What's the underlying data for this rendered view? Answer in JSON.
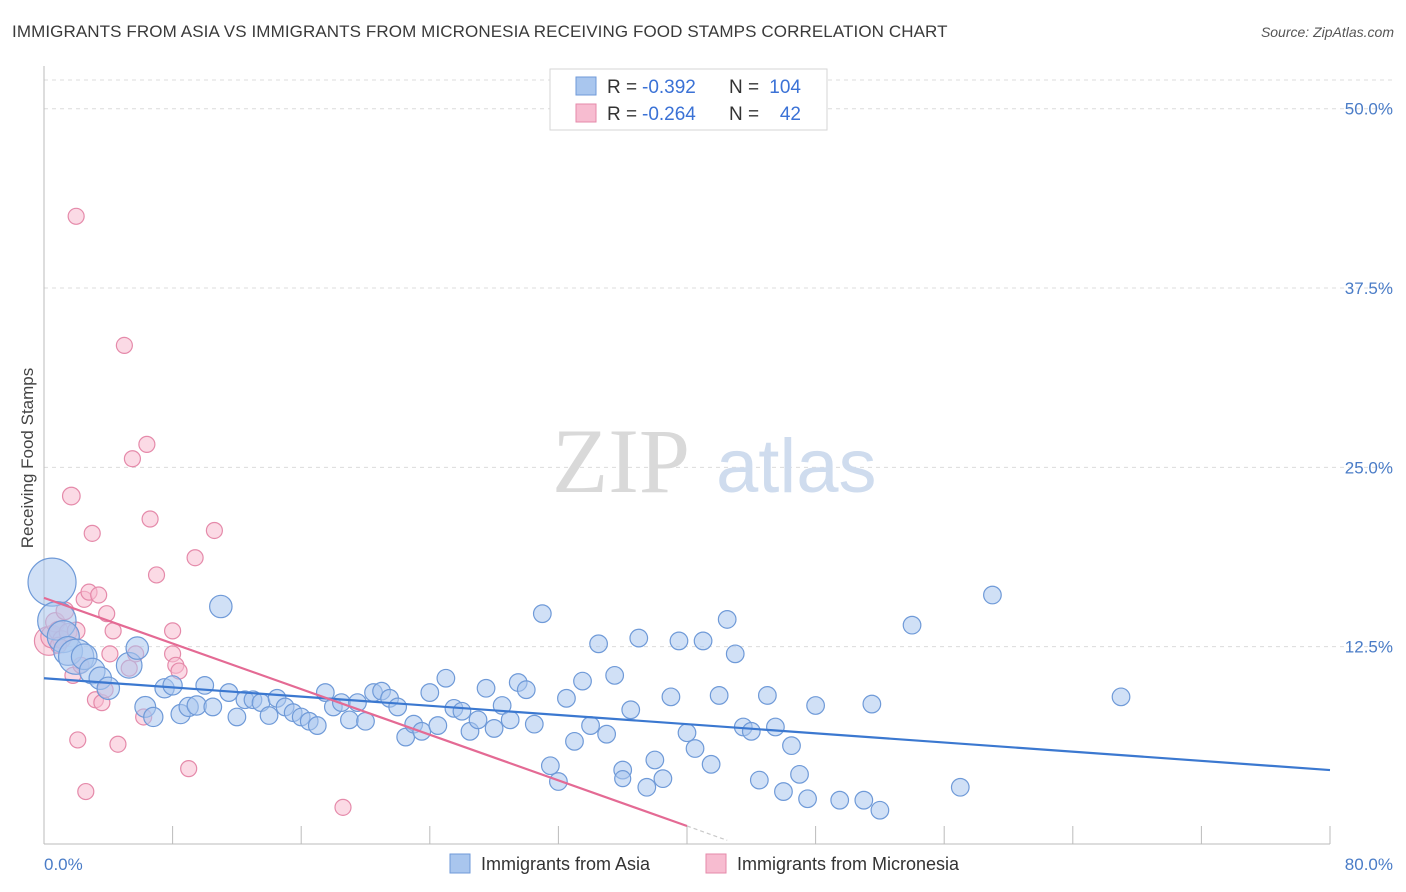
{
  "title": "IMMIGRANTS FROM ASIA VS IMMIGRANTS FROM MICRONESIA RECEIVING FOOD STAMPS CORRELATION CHART",
  "source": "Source: ZipAtlas.com",
  "watermark": {
    "left": "ZIP",
    "right": "atlas"
  },
  "colors": {
    "asia_fill": "#a9c6ee",
    "asia_stroke": "#6f9ad8",
    "asia_line": "#3b78d0",
    "micronesia_fill": "#f7bcd0",
    "micronesia_stroke": "#e58aaa",
    "micronesia_line": "#e46a94",
    "tick_label": "#4a7cc7",
    "grid": "#dcdcdc"
  },
  "legend": {
    "rows": [
      {
        "r_label": "R =",
        "r_value": "-0.392",
        "n_label": "N =",
        "n_value": "104"
      },
      {
        "r_label": "R =",
        "r_value": "-0.264",
        "n_label": "N =",
        "n_value": "42"
      }
    ]
  },
  "bottom_legend": {
    "asia": "Immigrants from Asia",
    "micronesia": "Immigrants from Micronesia"
  },
  "chart_data": {
    "type": "scatter",
    "title": "IMMIGRANTS FROM ASIA VS IMMIGRANTS FROM MICRONESIA RECEIVING FOOD STAMPS CORRELATION CHART",
    "xlabel": "",
    "ylabel": "Receiving Food Stamps",
    "xlim": [
      0,
      80
    ],
    "ylim": [
      0,
      52
    ],
    "x_tick_labels": [
      "0.0%",
      "80.0%"
    ],
    "y_ticks": [
      12.5,
      25.0,
      37.5,
      50.0
    ],
    "y_tick_labels": [
      "12.5%",
      "25.0%",
      "37.5%",
      "50.0%"
    ],
    "grid": true,
    "legend_position": "top-center",
    "series": [
      {
        "name": "Immigrants from Asia",
        "r": -0.392,
        "n": 104,
        "trend": {
          "x": [
            0,
            80
          ],
          "y": [
            10.3,
            3.9
          ]
        },
        "points": [
          [
            0.5,
            17.0,
            3.0
          ],
          [
            0.8,
            14.3,
            2.4
          ],
          [
            1.2,
            13.2,
            2.0
          ],
          [
            1.5,
            12.2,
            1.8
          ],
          [
            2.0,
            11.8,
            2.2
          ],
          [
            2.5,
            11.8,
            1.6
          ],
          [
            3.0,
            10.8,
            1.6
          ],
          [
            3.5,
            10.3,
            1.4
          ],
          [
            4.0,
            9.6,
            1.4
          ],
          [
            5.3,
            11.2,
            1.6
          ],
          [
            5.8,
            12.4,
            1.4
          ],
          [
            6.3,
            8.3,
            1.3
          ],
          [
            6.8,
            7.6,
            1.2
          ],
          [
            7.5,
            9.6,
            1.2
          ],
          [
            8.0,
            9.8,
            1.2
          ],
          [
            8.5,
            7.8,
            1.2
          ],
          [
            9.0,
            8.3,
            1.2
          ],
          [
            9.5,
            8.4,
            1.2
          ],
          [
            10.0,
            9.8,
            1.1
          ],
          [
            10.5,
            8.3,
            1.1
          ],
          [
            11.0,
            15.3,
            1.4
          ],
          [
            11.5,
            9.3,
            1.1
          ],
          [
            12.0,
            7.6,
            1.1
          ],
          [
            12.5,
            8.8,
            1.1
          ],
          [
            13.0,
            8.8,
            1.1
          ],
          [
            13.5,
            8.6,
            1.1
          ],
          [
            14.0,
            7.7,
            1.1
          ],
          [
            14.5,
            8.9,
            1.1
          ],
          [
            15.0,
            8.3,
            1.1
          ],
          [
            15.5,
            7.9,
            1.1
          ],
          [
            16.0,
            7.6,
            1.1
          ],
          [
            16.5,
            7.3,
            1.1
          ],
          [
            17.0,
            7.0,
            1.1
          ],
          [
            17.5,
            9.3,
            1.1
          ],
          [
            18.0,
            8.3,
            1.1
          ],
          [
            18.5,
            8.6,
            1.1
          ],
          [
            19.0,
            7.4,
            1.1
          ],
          [
            19.5,
            8.6,
            1.1
          ],
          [
            20.0,
            7.3,
            1.1
          ],
          [
            20.5,
            9.3,
            1.1
          ],
          [
            21.0,
            9.4,
            1.1
          ],
          [
            21.5,
            8.9,
            1.1
          ],
          [
            22.0,
            8.3,
            1.1
          ],
          [
            22.5,
            6.2,
            1.1
          ],
          [
            23.0,
            7.1,
            1.1
          ],
          [
            23.5,
            6.6,
            1.1
          ],
          [
            24.0,
            9.3,
            1.1
          ],
          [
            24.5,
            7.0,
            1.1
          ],
          [
            25.0,
            10.3,
            1.1
          ],
          [
            25.5,
            8.2,
            1.1
          ],
          [
            26.0,
            8.0,
            1.1
          ],
          [
            26.5,
            6.6,
            1.1
          ],
          [
            27.0,
            7.4,
            1.1
          ],
          [
            27.5,
            9.6,
            1.1
          ],
          [
            28.0,
            6.8,
            1.1
          ],
          [
            28.5,
            8.4,
            1.1
          ],
          [
            29.0,
            7.4,
            1.1
          ],
          [
            29.5,
            10.0,
            1.1
          ],
          [
            30.0,
            9.5,
            1.1
          ],
          [
            30.5,
            7.1,
            1.1
          ],
          [
            31.0,
            14.8,
            1.1
          ],
          [
            31.5,
            4.2,
            1.1
          ],
          [
            32.0,
            3.1,
            1.1
          ],
          [
            32.5,
            8.9,
            1.1
          ],
          [
            33.0,
            5.9,
            1.1
          ],
          [
            33.5,
            10.1,
            1.1
          ],
          [
            34.0,
            7.0,
            1.1
          ],
          [
            34.5,
            12.7,
            1.1
          ],
          [
            35.0,
            6.4,
            1.1
          ],
          [
            35.5,
            10.5,
            1.1
          ],
          [
            36.0,
            3.9,
            1.1
          ],
          [
            36.5,
            8.1,
            1.1
          ],
          [
            37.0,
            13.1,
            1.1
          ],
          [
            37.5,
            2.7,
            1.1
          ],
          [
            38.0,
            4.6,
            1.1
          ],
          [
            38.5,
            3.3,
            1.1
          ],
          [
            39.0,
            9.0,
            1.1
          ],
          [
            39.5,
            12.9,
            1.1
          ],
          [
            40.0,
            6.5,
            1.1
          ],
          [
            40.5,
            5.4,
            1.1
          ],
          [
            41.0,
            12.9,
            1.1
          ],
          [
            41.5,
            4.3,
            1.1
          ],
          [
            42.0,
            9.1,
            1.1
          ],
          [
            42.5,
            14.4,
            1.1
          ],
          [
            43.0,
            12.0,
            1.1
          ],
          [
            43.5,
            6.9,
            1.1
          ],
          [
            44.0,
            6.6,
            1.1
          ],
          [
            44.5,
            3.2,
            1.1
          ],
          [
            45.0,
            9.1,
            1.1
          ],
          [
            45.5,
            6.9,
            1.1
          ],
          [
            46.0,
            2.4,
            1.1
          ],
          [
            46.5,
            5.6,
            1.1
          ],
          [
            47.0,
            3.6,
            1.1
          ],
          [
            47.5,
            1.9,
            1.1
          ],
          [
            48.0,
            8.4,
            1.1
          ],
          [
            49.5,
            1.8,
            1.1
          ],
          [
            51.0,
            1.8,
            1.1
          ],
          [
            51.5,
            8.5,
            1.1
          ],
          [
            52.0,
            1.1,
            1.1
          ],
          [
            54.0,
            14.0,
            1.1
          ],
          [
            57.0,
            2.7,
            1.1
          ],
          [
            59.0,
            16.1,
            1.1
          ],
          [
            67.0,
            9.0,
            1.1
          ],
          [
            36.0,
            3.3,
            1.0
          ]
        ]
      },
      {
        "name": "Immigrants from Micronesia",
        "r": -0.264,
        "n": 42,
        "trend": {
          "x": [
            0,
            40
          ],
          "y": [
            15.9,
            0.0
          ]
        },
        "points": [
          [
            0.3,
            12.9,
            1.8
          ],
          [
            0.5,
            13.2,
            1.4
          ],
          [
            0.7,
            14.2,
            1.2
          ],
          [
            0.9,
            13.6,
            1.2
          ],
          [
            1.1,
            13.0,
            1.1
          ],
          [
            1.3,
            15.0,
            1.1
          ],
          [
            1.5,
            13.5,
            1.1
          ],
          [
            1.7,
            23.0,
            1.1
          ],
          [
            1.8,
            10.5,
            1.0
          ],
          [
            2.0,
            13.6,
            1.1
          ],
          [
            2.1,
            6.0,
            1.0
          ],
          [
            2.3,
            11.2,
            1.0
          ],
          [
            2.5,
            15.8,
            1.0
          ],
          [
            2.6,
            2.4,
            1.0
          ],
          [
            2.8,
            16.3,
            1.0
          ],
          [
            3.0,
            20.4,
            1.0
          ],
          [
            3.2,
            8.8,
            1.0
          ],
          [
            3.4,
            16.1,
            1.0
          ],
          [
            3.6,
            8.6,
            1.0
          ],
          [
            3.8,
            9.5,
            1.0
          ],
          [
            3.9,
            14.8,
            1.0
          ],
          [
            4.1,
            12.0,
            1.0
          ],
          [
            4.3,
            13.6,
            1.0
          ],
          [
            4.6,
            5.7,
            1.0
          ],
          [
            5.0,
            33.5,
            1.0
          ],
          [
            5.3,
            11.0,
            1.0
          ],
          [
            5.5,
            25.6,
            1.0
          ],
          [
            5.7,
            12.0,
            1.0
          ],
          [
            6.2,
            7.6,
            1.0
          ],
          [
            6.4,
            26.6,
            1.0
          ],
          [
            6.6,
            21.4,
            1.0
          ],
          [
            7.0,
            17.5,
            1.0
          ],
          [
            8.0,
            12.0,
            1.0
          ],
          [
            8.0,
            13.6,
            1.0
          ],
          [
            8.2,
            11.2,
            1.0
          ],
          [
            8.4,
            10.8,
            1.0
          ],
          [
            9.0,
            4.0,
            1.0
          ],
          [
            9.4,
            18.7,
            1.0
          ],
          [
            10.6,
            20.6,
            1.0
          ],
          [
            18.6,
            1.3,
            1.0
          ],
          [
            2.0,
            42.5,
            1.0
          ],
          [
            0.9,
            12.6,
            1.0
          ]
        ]
      }
    ]
  }
}
